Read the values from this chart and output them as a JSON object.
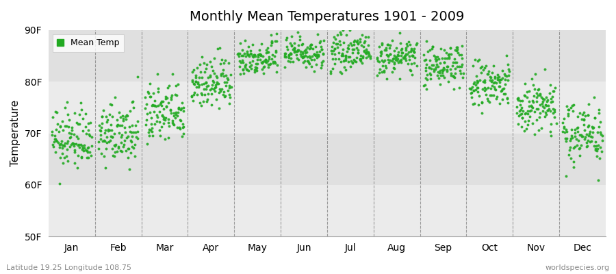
{
  "title": "Monthly Mean Temperatures 1901 - 2009",
  "ylabel": "Temperature",
  "bottom_left": "Latitude 19.25 Longitude 108.75",
  "bottom_right": "worldspecies.org",
  "ylim": [
    50,
    90
  ],
  "yticks": [
    50,
    60,
    70,
    80,
    90
  ],
  "ytick_labels": [
    "50F",
    "60F",
    "70F",
    "80F",
    "90F"
  ],
  "months": [
    "Jan",
    "Feb",
    "Mar",
    "Apr",
    "May",
    "Jun",
    "Jul",
    "Aug",
    "Sep",
    "Oct",
    "Nov",
    "Dec"
  ],
  "dot_color": "#22aa22",
  "plot_bg_color": "#e8e8e8",
  "fig_bg_color": "#ffffff",
  "n_years": 109,
  "monthly_mean_F": [
    68.5,
    69.5,
    73.5,
    79.5,
    84.5,
    85.5,
    85.5,
    84.5,
    83.0,
    79.0,
    75.0,
    70.0
  ],
  "monthly_std_F": [
    2.8,
    2.8,
    3.0,
    2.5,
    1.8,
    1.6,
    1.6,
    1.6,
    2.0,
    2.5,
    2.8,
    3.0
  ],
  "warming_trend_F_per_century": 0.5,
  "seed": 12345
}
